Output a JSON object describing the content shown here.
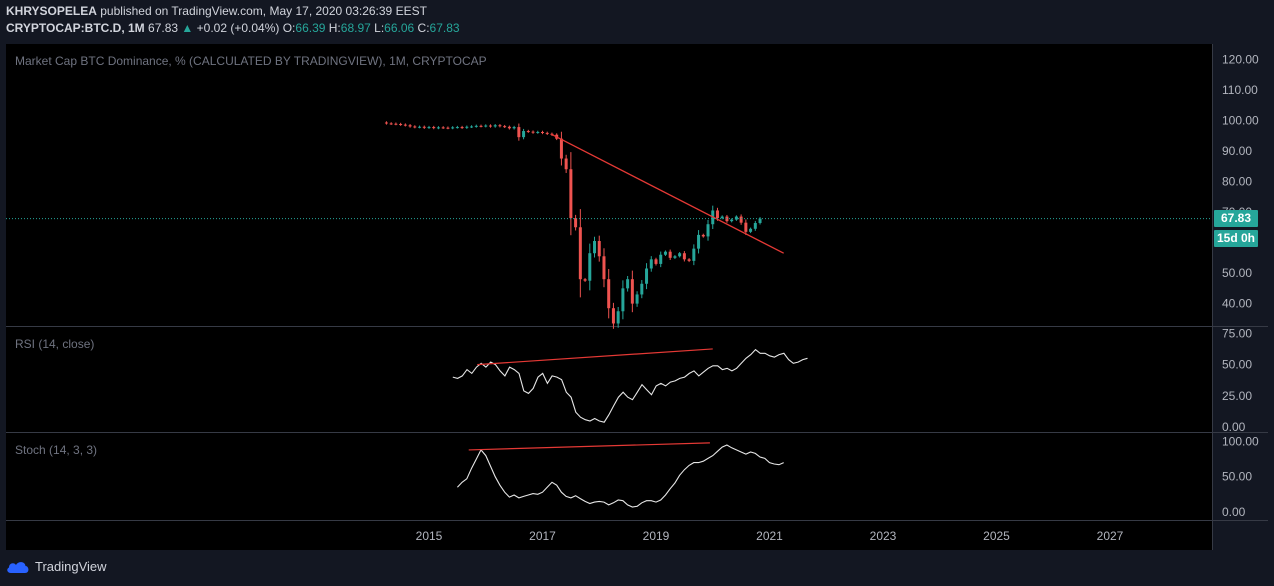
{
  "header": {
    "author": "KHRYSOPELEA",
    "published": "published on TradingView.com, May 17, 2020 03:26:39 EEST",
    "symbol": "CRYPTOCAP:BTC.D, 1M",
    "last": "67.83",
    "change": "+0.02 (+0.04%)",
    "o_label": "O:",
    "o": "66.39",
    "h_label": "H:",
    "h": "68.97",
    "l_label": "L:",
    "l": "66.06",
    "c_label": "C:",
    "c": "67.83"
  },
  "panes": {
    "main_label": "Market Cap BTC Dominance, % (CALCULATED BY TRADINGVIEW), 1M, CRYPTOCAP",
    "rsi_label": "RSI (14, close)",
    "stoch_label": "Stoch (14, 3, 3)"
  },
  "price_tag": "67.83",
  "countdown_tag": "15d 0h",
  "brand": "TradingView",
  "colors": {
    "up": "#26a69a",
    "down": "#ef5350",
    "trend": "#e53935",
    "bg": "#131722"
  },
  "chart_data": [
    {
      "type": "candlestick",
      "title": "Market Cap BTC Dominance, % (CALCULATED BY TRADINGVIEW), 1M, CRYPTOCAP",
      "x_ticks": [
        "2015",
        "2017",
        "2019",
        "2021",
        "2023",
        "2025",
        "2027"
      ],
      "y_ticks": [
        40,
        50,
        60,
        70,
        80,
        90,
        100,
        110,
        120
      ],
      "y_tick_labels": [
        "40.00",
        "50.00",
        "60.00",
        "70.00",
        "80.00",
        "90.00",
        "100.00",
        "110.00",
        "120.00"
      ],
      "ylim": [
        33,
        125
      ],
      "xlim": [
        2013.55,
        2028.25
      ],
      "last_price": 67.83,
      "trendline": [
        [
          2017.15,
          95.5
        ],
        [
          2021.25,
          56.5
        ]
      ],
      "closes": [
        99.0,
        98.9,
        98.8,
        98.6,
        98.4,
        98.0,
        97.8,
        97.9,
        97.6,
        97.8,
        97.5,
        97.7,
        97.6,
        97.5,
        97.7,
        97.8,
        97.6,
        97.9,
        98.0,
        98.2,
        98.1,
        98.3,
        98.0,
        98.4,
        98.1,
        97.9,
        97.4,
        97.8,
        94.5,
        96.5,
        96.3,
        96.0,
        96.2,
        95.9,
        95.6,
        95.3,
        94.0,
        87.5,
        84.0,
        68.0,
        65.0,
        48.0,
        47.5,
        56.5,
        60.5,
        55.5,
        48.0,
        38.5,
        33.5,
        37.5,
        45.0,
        48.0,
        40.0,
        43.0,
        46.5,
        51.5,
        54.5,
        53.0,
        56.0,
        57.0,
        55.0,
        55.5,
        56.5,
        54.5,
        54.0,
        58.0,
        62.5,
        62.0,
        66.0,
        70.5,
        68.0,
        68.5,
        67.0,
        67.5,
        68.5,
        66.5,
        63.5,
        64.5,
        66.4,
        67.83
      ]
    },
    {
      "type": "line",
      "title": "RSI (14, close)",
      "y_ticks": [
        0,
        25,
        50,
        75
      ],
      "y_tick_labels": [
        "0.00",
        "25.00",
        "50.00",
        "75.00"
      ],
      "ylim": [
        -3,
        80
      ],
      "values": [
        40,
        39,
        41,
        46,
        43,
        48,
        51,
        48,
        52,
        50,
        45,
        41,
        48,
        46,
        43,
        29,
        27,
        31,
        40,
        43,
        35,
        41,
        40,
        38,
        28,
        24,
        12,
        8,
        6,
        5,
        7,
        5,
        4,
        10,
        17,
        24,
        28,
        24,
        22,
        28,
        34,
        30,
        26,
        33,
        35,
        33,
        36,
        37,
        39,
        40,
        43,
        45,
        41,
        44,
        47,
        49,
        49,
        46,
        47,
        45,
        47,
        51,
        55,
        58,
        62,
        59,
        59,
        57,
        56,
        58,
        59,
        54,
        51,
        52,
        54,
        55
      ],
      "trendline": [
        [
          2015.85,
          50
        ],
        [
          2020.0,
          62.5
        ]
      ]
    },
    {
      "type": "line",
      "title": "Stoch (14, 3, 3)",
      "y_ticks": [
        0,
        50,
        100
      ],
      "y_tick_labels": [
        "0.00",
        "50.00",
        "100.00"
      ],
      "ylim": [
        -10,
        112
      ],
      "values": [
        35,
        42,
        47,
        62,
        75,
        88,
        80,
        65,
        50,
        38,
        28,
        21,
        24,
        20,
        22,
        24,
        26,
        25,
        28,
        35,
        42,
        38,
        28,
        22,
        20,
        23,
        19,
        15,
        12,
        14,
        15,
        14,
        10,
        13,
        17,
        16,
        10,
        7,
        8,
        13,
        16,
        16,
        14,
        17,
        24,
        33,
        41,
        52,
        60,
        66,
        70,
        70,
        72,
        76,
        80,
        86,
        92,
        95,
        91,
        88,
        85,
        82,
        85,
        83,
        78,
        76,
        70,
        68,
        67,
        70
      ],
      "trendline": [
        [
          2015.7,
          88
        ],
        [
          2019.95,
          98
        ]
      ]
    }
  ]
}
